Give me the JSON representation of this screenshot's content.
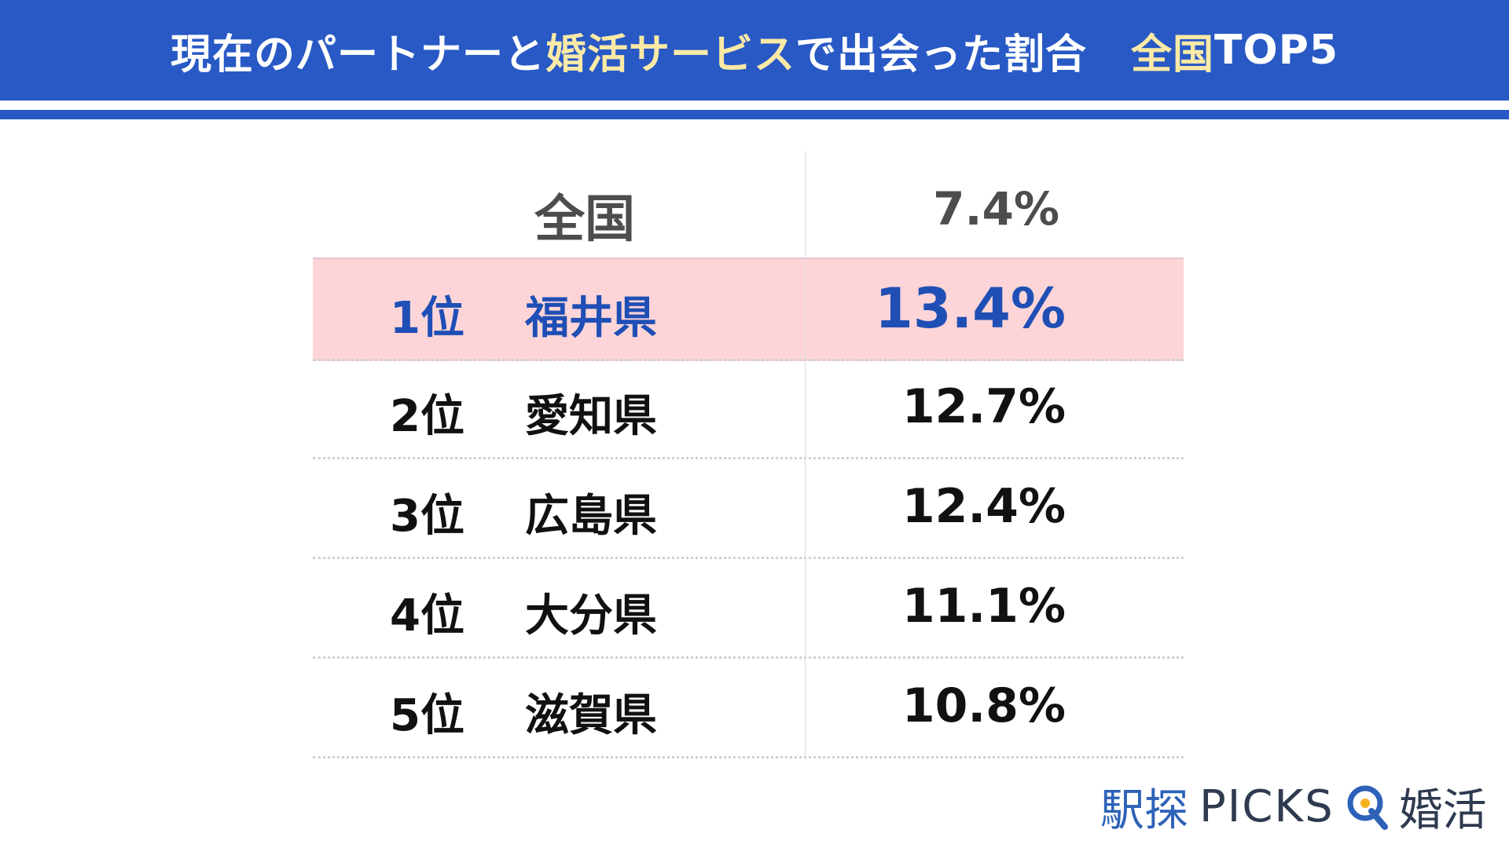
{
  "header": {
    "title_part1": "現在のパートナーと",
    "title_highlight": "婚活サービス",
    "title_part2": "で出会った割合",
    "title_suffix_highlight": "全国",
    "title_suffix": " TOP5"
  },
  "colors": {
    "header_bg": "#2859c5",
    "highlight_text": "#fbe9a6",
    "first_row_bg": "#fdd5d8",
    "first_row_text": "#1f4fb5"
  },
  "chart_data": {
    "type": "table",
    "title": "現在のパートナーと婚活サービスで出会った割合 全国 TOP5",
    "national": {
      "label": "全国",
      "value": 7.4,
      "display": "7.4%"
    },
    "rows": [
      {
        "rank": "1位",
        "prefecture": "福井県",
        "value": 13.4,
        "display": "13.4%"
      },
      {
        "rank": "2位",
        "prefecture": "愛知県",
        "value": 12.7,
        "display": "12.7%"
      },
      {
        "rank": "3位",
        "prefecture": "広島県",
        "value": 12.4,
        "display": "12.4%"
      },
      {
        "rank": "4位",
        "prefecture": "大分県",
        "value": 11.1,
        "display": "11.1%"
      },
      {
        "rank": "5位",
        "prefecture": "滋賀県",
        "value": 10.8,
        "display": "10.8%"
      }
    ]
  },
  "logo": {
    "brand": "駅探",
    "picks": "PICKS",
    "suffix": "婚活",
    "icon": "magnifier-q-icon"
  }
}
